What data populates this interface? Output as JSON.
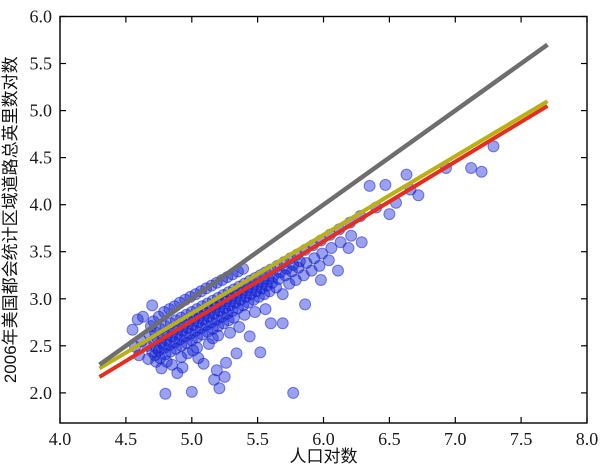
{
  "figure": {
    "background": "#ffffff",
    "spine_color": "#000000"
  },
  "chart_data": {
    "type": "scatter",
    "title": "",
    "xlabel": "人口对数",
    "ylabel": "2006年美国都会统计区域道路总英里数对数",
    "xlim": [
      4.0,
      8.0
    ],
    "ylim": [
      1.68,
      6.0
    ],
    "grid": false,
    "legend": null,
    "xticks": {
      "values": [
        4.0,
        4.5,
        5.0,
        5.5,
        6.0,
        6.5,
        7.0,
        7.5,
        8.0
      ],
      "labels": [
        "4.0",
        "4.5",
        "5.0",
        "5.5",
        "6.0",
        "6.5",
        "7.0",
        "7.5",
        "8.0"
      ]
    },
    "yticks": {
      "values": [
        2.0,
        2.5,
        3.0,
        3.5,
        4.0,
        4.5,
        5.0,
        5.5,
        6.0
      ],
      "labels": [
        "2.0",
        "2.5",
        "3.0",
        "3.5",
        "4.0",
        "4.5",
        "5.0",
        "5.5",
        "6.0"
      ]
    },
    "series": [
      {
        "name": "metro-areas-scatter",
        "type": "scatter",
        "fill": "rgba(15,30,215,0.42)",
        "edge": "rgba(15,28,200,0.5)",
        "marker_radius": 5.5,
        "points": [
          [
            4.68,
            2.62
          ],
          [
            4.66,
            2.5
          ],
          [
            4.7,
            2.44
          ],
          [
            4.69,
            2.71
          ],
          [
            4.67,
            2.36
          ],
          [
            4.71,
            2.56
          ],
          [
            4.72,
            2.65
          ],
          [
            4.73,
            2.48
          ],
          [
            4.72,
            2.4
          ],
          [
            4.74,
            2.58
          ],
          [
            4.71,
            2.76
          ],
          [
            4.73,
            2.33
          ],
          [
            4.76,
            2.68
          ],
          [
            4.77,
            2.53
          ],
          [
            4.75,
            2.45
          ],
          [
            4.78,
            2.61
          ],
          [
            4.76,
            2.37
          ],
          [
            4.75,
            2.81
          ],
          [
            4.77,
            2.26
          ],
          [
            4.8,
            2.71
          ],
          [
            4.81,
            2.56
          ],
          [
            4.79,
            2.48
          ],
          [
            4.82,
            2.64
          ],
          [
            4.8,
            2.41
          ],
          [
            4.79,
            2.86
          ],
          [
            4.81,
            2.33
          ],
          [
            4.8,
            1.99
          ],
          [
            4.84,
            2.74
          ],
          [
            4.85,
            2.6
          ],
          [
            4.83,
            2.51
          ],
          [
            4.86,
            2.67
          ],
          [
            4.84,
            2.44
          ],
          [
            4.83,
            2.89
          ],
          [
            4.85,
            2.3
          ],
          [
            4.88,
            2.77
          ],
          [
            4.89,
            2.62
          ],
          [
            4.87,
            2.54
          ],
          [
            4.9,
            2.7
          ],
          [
            4.88,
            2.47
          ],
          [
            4.87,
            2.92
          ],
          [
            4.89,
            2.21
          ],
          [
            4.92,
            2.8
          ],
          [
            4.93,
            2.66
          ],
          [
            4.91,
            2.57
          ],
          [
            4.94,
            2.73
          ],
          [
            4.92,
            2.5
          ],
          [
            4.91,
            2.96
          ],
          [
            4.93,
            2.27
          ],
          [
            4.92,
            2.38
          ],
          [
            4.96,
            2.83
          ],
          [
            4.97,
            2.69
          ],
          [
            4.95,
            2.6
          ],
          [
            4.98,
            2.76
          ],
          [
            4.96,
            2.53
          ],
          [
            4.95,
            2.99
          ],
          [
            4.97,
            2.42
          ],
          [
            5.0,
            2.86
          ],
          [
            5.01,
            2.72
          ],
          [
            4.99,
            2.63
          ],
          [
            5.02,
            2.79
          ],
          [
            5.0,
            2.56
          ],
          [
            4.99,
            3.02
          ],
          [
            5.01,
            2.45
          ],
          [
            5.0,
            2.01
          ],
          [
            5.04,
            2.89
          ],
          [
            5.05,
            2.75
          ],
          [
            5.03,
            2.66
          ],
          [
            5.06,
            2.82
          ],
          [
            5.04,
            2.59
          ],
          [
            5.03,
            3.05
          ],
          [
            5.05,
            2.37
          ],
          [
            5.04,
            2.48
          ],
          [
            5.08,
            2.92
          ],
          [
            5.09,
            2.78
          ],
          [
            5.07,
            2.69
          ],
          [
            5.1,
            2.85
          ],
          [
            5.08,
            2.62
          ],
          [
            5.07,
            3.08
          ],
          [
            5.09,
            2.31
          ],
          [
            5.12,
            2.95
          ],
          [
            5.13,
            2.81
          ],
          [
            5.11,
            2.72
          ],
          [
            5.14,
            2.88
          ],
          [
            5.12,
            2.65
          ],
          [
            5.11,
            3.11
          ],
          [
            5.13,
            2.52
          ],
          [
            5.16,
            2.98
          ],
          [
            5.17,
            2.84
          ],
          [
            5.15,
            2.75
          ],
          [
            5.18,
            2.91
          ],
          [
            5.16,
            2.68
          ],
          [
            5.15,
            3.14
          ],
          [
            5.17,
            2.14
          ],
          [
            5.16,
            2.58
          ],
          [
            5.2,
            3.01
          ],
          [
            5.21,
            2.87
          ],
          [
            5.19,
            2.78
          ],
          [
            5.22,
            2.94
          ],
          [
            5.2,
            2.71
          ],
          [
            5.19,
            3.17
          ],
          [
            5.21,
            2.05
          ],
          [
            5.2,
            2.61
          ],
          [
            5.24,
            3.04
          ],
          [
            5.25,
            2.9
          ],
          [
            5.23,
            2.81
          ],
          [
            5.26,
            2.97
          ],
          [
            5.24,
            2.74
          ],
          [
            5.23,
            3.2
          ],
          [
            5.25,
            2.17
          ],
          [
            5.28,
            3.07
          ],
          [
            5.29,
            2.93
          ],
          [
            5.27,
            2.84
          ],
          [
            5.3,
            3.0
          ],
          [
            5.28,
            2.77
          ],
          [
            5.27,
            3.23
          ],
          [
            5.29,
            2.64
          ],
          [
            5.32,
            3.1
          ],
          [
            5.33,
            2.96
          ],
          [
            5.31,
            2.87
          ],
          [
            5.34,
            3.03
          ],
          [
            5.32,
            2.8
          ],
          [
            5.31,
            3.26
          ],
          [
            5.36,
            3.13
          ],
          [
            5.37,
            2.99
          ],
          [
            5.35,
            2.9
          ],
          [
            5.38,
            3.06
          ],
          [
            5.36,
            2.7
          ],
          [
            5.35,
            3.29
          ],
          [
            5.4,
            3.16
          ],
          [
            5.41,
            3.02
          ],
          [
            5.39,
            2.93
          ],
          [
            5.42,
            3.09
          ],
          [
            5.4,
            2.83
          ],
          [
            5.39,
            3.32
          ],
          [
            5.44,
            3.19
          ],
          [
            5.45,
            3.05
          ],
          [
            5.43,
            2.96
          ],
          [
            5.46,
            3.12
          ],
          [
            5.44,
            2.6
          ],
          [
            5.48,
            3.22
          ],
          [
            5.49,
            3.08
          ],
          [
            5.47,
            2.99
          ],
          [
            5.5,
            3.15
          ],
          [
            5.48,
            2.86
          ],
          [
            5.52,
            3.25
          ],
          [
            5.53,
            3.11
          ],
          [
            5.51,
            3.02
          ],
          [
            5.54,
            3.18
          ],
          [
            5.52,
            2.43
          ],
          [
            5.56,
            3.28
          ],
          [
            5.57,
            3.14
          ],
          [
            5.55,
            3.05
          ],
          [
            5.58,
            3.21
          ],
          [
            5.56,
            2.89
          ],
          [
            5.6,
            3.31
          ],
          [
            5.61,
            3.17
          ],
          [
            5.59,
            3.08
          ],
          [
            5.62,
            3.24
          ],
          [
            5.6,
            2.74
          ],
          [
            5.65,
            3.35
          ],
          [
            5.66,
            3.21
          ],
          [
            5.64,
            3.12
          ],
          [
            5.67,
            3.28
          ],
          [
            5.7,
            3.39
          ],
          [
            5.71,
            3.25
          ],
          [
            5.69,
            3.05
          ],
          [
            5.72,
            3.32
          ],
          [
            5.69,
            2.74
          ],
          [
            5.75,
            3.43
          ],
          [
            5.76,
            3.29
          ],
          [
            5.74,
            3.16
          ],
          [
            5.77,
            3.36
          ],
          [
            5.77,
            2.0
          ],
          [
            5.8,
            3.47
          ],
          [
            5.81,
            3.33
          ],
          [
            5.79,
            3.2
          ],
          [
            5.82,
            3.4
          ],
          [
            5.86,
            3.52
          ],
          [
            5.87,
            3.38
          ],
          [
            5.85,
            3.25
          ],
          [
            5.86,
            2.94
          ],
          [
            5.92,
            3.57
          ],
          [
            5.93,
            3.43
          ],
          [
            5.91,
            3.3
          ],
          [
            5.98,
            3.62
          ],
          [
            5.99,
            3.48
          ],
          [
            5.97,
            3.35
          ],
          [
            5.98,
            3.2
          ],
          [
            6.05,
            3.68
          ],
          [
            6.06,
            3.54
          ],
          [
            6.04,
            3.41
          ],
          [
            6.12,
            3.74
          ],
          [
            6.13,
            3.6
          ],
          [
            6.11,
            3.3
          ],
          [
            6.2,
            3.81
          ],
          [
            6.21,
            3.67
          ],
          [
            6.19,
            3.54
          ],
          [
            6.28,
            3.88
          ],
          [
            6.29,
            3.6
          ],
          [
            6.35,
            4.2
          ],
          [
            6.4,
            3.97
          ],
          [
            6.47,
            4.21
          ],
          [
            6.5,
            3.9
          ],
          [
            6.55,
            4.02
          ],
          [
            6.63,
            4.32
          ],
          [
            6.66,
            4.16
          ],
          [
            6.72,
            4.1
          ],
          [
            6.93,
            4.39
          ],
          [
            7.12,
            4.39
          ],
          [
            7.2,
            4.35
          ],
          [
            7.29,
            4.62
          ],
          [
            5.19,
            2.24
          ],
          [
            5.26,
            2.32
          ],
          [
            5.34,
            2.42
          ],
          [
            4.55,
            2.67
          ],
          [
            4.59,
            2.78
          ],
          [
            4.62,
            2.55
          ],
          [
            4.6,
            2.4
          ],
          [
            4.57,
            2.49
          ],
          [
            4.63,
            2.81
          ],
          [
            4.7,
            2.93
          ]
        ]
      },
      {
        "name": "red-fit-line",
        "type": "line",
        "color": "#e62e1e",
        "width": 4,
        "x": [
          4.3,
          7.7
        ],
        "y": [
          2.17,
          5.05
        ]
      },
      {
        "name": "yellow-fit-line",
        "type": "line",
        "color": "#b9b012",
        "width": 4,
        "x": [
          4.3,
          7.7
        ],
        "y": [
          2.26,
          5.1
        ]
      },
      {
        "name": "gray-reference-line",
        "type": "line",
        "color": "#6e6e6e",
        "width": 4.5,
        "x": [
          4.3,
          7.7
        ],
        "y": [
          2.3,
          5.7
        ]
      }
    ]
  }
}
